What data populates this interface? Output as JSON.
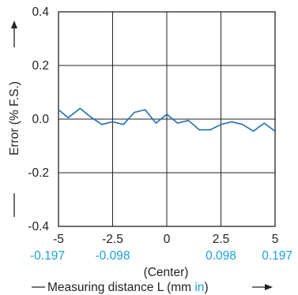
{
  "chart_data": {
    "type": "line",
    "ylabel": "Error (% F.S.)",
    "xlabel_prefix": "Measuring distance L (mm ",
    "xlabel_unit_alt": "in",
    "xlabel_suffix": ")",
    "center_label": "(Center)",
    "xlim": [
      -5,
      5
    ],
    "ylim": [
      -0.4,
      0.4
    ],
    "x_ticks": [
      "-5",
      "-2.5",
      "0",
      "2.5",
      "5"
    ],
    "x_ticks_alt": [
      "-0.197",
      "-0.098",
      "",
      "0.098",
      "0.197"
    ],
    "y_ticks": [
      "0.4",
      "0.2",
      "0.0",
      "-0.2",
      "-0.4"
    ],
    "grid": true,
    "line_color": "#1f6fb5",
    "series": [
      {
        "x": [
          -5.0,
          -4.55,
          -4.0,
          -3.55,
          -3.0,
          -2.5,
          -2.0,
          -1.5,
          -1.0,
          -0.5,
          0.0,
          0.5,
          1.0,
          1.5,
          2.0,
          2.5,
          3.0,
          3.5,
          4.0,
          4.5,
          5.0
        ],
        "y": [
          0.035,
          0.005,
          0.04,
          0.01,
          -0.02,
          -0.01,
          -0.02,
          0.025,
          0.035,
          -0.015,
          0.018,
          -0.015,
          -0.005,
          -0.04,
          -0.04,
          -0.02,
          -0.01,
          -0.02,
          -0.045,
          -0.015,
          -0.045
        ]
      }
    ]
  }
}
